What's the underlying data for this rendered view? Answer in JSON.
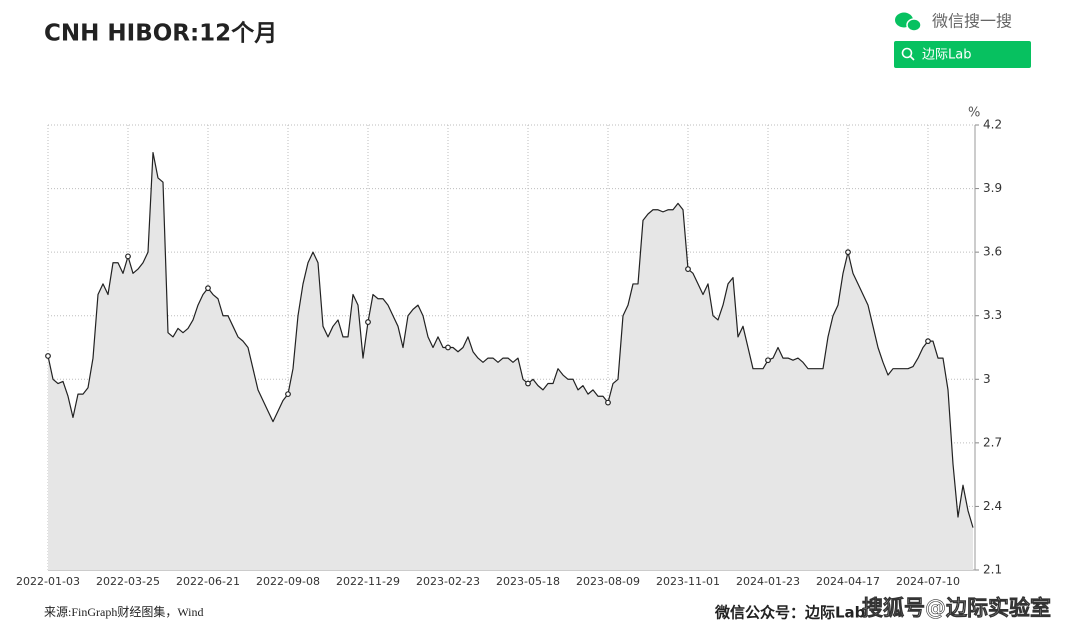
{
  "chart_data": {
    "type": "area",
    "title": "CNH HIBOR:12个月",
    "unit_label": "%",
    "source": "来源:FinGraph财经图集，Wind",
    "footer_account": "微信公众号：边际Lab",
    "watermark": "搜狐号@边际实验室",
    "search_widget": {
      "label": "微信搜一搜",
      "query": "边际Lab"
    },
    "line_color": "#222222",
    "fill_color": "#e6e6e6",
    "grid": true,
    "ylim": [
      2.1,
      4.2
    ],
    "yticks": [
      2.1,
      2.4,
      2.7,
      3,
      3.3,
      3.6,
      3.9,
      4.2
    ],
    "categories": [
      "2022-01-03",
      null,
      null,
      null,
      null,
      null,
      null,
      null,
      null,
      null,
      null,
      null,
      null,
      null,
      null,
      null,
      "2022-03-25",
      null,
      null,
      null,
      null,
      null,
      null,
      null,
      null,
      null,
      null,
      null,
      null,
      null,
      null,
      null,
      "2022-06-21",
      null,
      null,
      null,
      null,
      null,
      null,
      null,
      null,
      null,
      null,
      null,
      null,
      null,
      null,
      null,
      "2022-09-08",
      null,
      null,
      null,
      null,
      null,
      null,
      null,
      null,
      null,
      null,
      null,
      null,
      null,
      null,
      null,
      "2022-11-29",
      null,
      null,
      null,
      null,
      null,
      null,
      null,
      null,
      null,
      null,
      null,
      null,
      null,
      null,
      null,
      "2023-02-23",
      null,
      null,
      null,
      null,
      null,
      null,
      null,
      null,
      null,
      null,
      null,
      null,
      null,
      null,
      null,
      "2023-05-18",
      null,
      null,
      null,
      null,
      null,
      null,
      null,
      null,
      null,
      null,
      null,
      null,
      null,
      null,
      null,
      "2023-08-09",
      null,
      null,
      null,
      null,
      null,
      null,
      null,
      null,
      null,
      null,
      null,
      null,
      null,
      null,
      null,
      "2023-11-01",
      null,
      null,
      null,
      null,
      null,
      null,
      null,
      null,
      null,
      null,
      null,
      null,
      null,
      null,
      null,
      "2024-01-23",
      null,
      null,
      null,
      null,
      null,
      null,
      null,
      null,
      null,
      null,
      null,
      null,
      null,
      null,
      null,
      "2024-04-17",
      null,
      null,
      null,
      null,
      null,
      null,
      null,
      null,
      null,
      null,
      null,
      null,
      null,
      null,
      null,
      "2024-07-10",
      null,
      null,
      null,
      null,
      null,
      null,
      null,
      null,
      null
    ],
    "values": [
      3.11,
      3.0,
      2.98,
      2.99,
      2.92,
      2.82,
      2.93,
      2.93,
      2.96,
      3.1,
      3.4,
      3.45,
      3.4,
      3.55,
      3.55,
      3.5,
      3.58,
      3.5,
      3.52,
      3.55,
      3.6,
      4.07,
      3.95,
      3.93,
      3.22,
      3.2,
      3.24,
      3.22,
      3.24,
      3.28,
      3.35,
      3.4,
      3.43,
      3.4,
      3.38,
      3.3,
      3.3,
      3.25,
      3.2,
      3.18,
      3.15,
      3.05,
      2.95,
      2.9,
      2.85,
      2.8,
      2.85,
      2.9,
      2.93,
      3.05,
      3.3,
      3.45,
      3.55,
      3.6,
      3.55,
      3.25,
      3.2,
      3.25,
      3.28,
      3.2,
      3.2,
      3.4,
      3.35,
      3.1,
      3.27,
      3.4,
      3.38,
      3.38,
      3.35,
      3.3,
      3.25,
      3.15,
      3.3,
      3.33,
      3.35,
      3.3,
      3.2,
      3.15,
      3.2,
      3.15,
      3.15,
      3.15,
      3.13,
      3.15,
      3.2,
      3.13,
      3.1,
      3.08,
      3.1,
      3.1,
      3.08,
      3.1,
      3.1,
      3.08,
      3.1,
      3.0,
      2.98,
      3.0,
      2.97,
      2.95,
      2.98,
      2.98,
      3.05,
      3.02,
      3.0,
      3.0,
      2.95,
      2.97,
      2.93,
      2.95,
      2.92,
      2.92,
      2.89,
      2.98,
      3.0,
      3.3,
      3.35,
      3.45,
      3.45,
      3.75,
      3.78,
      3.8,
      3.8,
      3.79,
      3.8,
      3.8,
      3.83,
      3.8,
      3.52,
      3.5,
      3.45,
      3.4,
      3.45,
      3.3,
      3.28,
      3.35,
      3.45,
      3.48,
      3.2,
      3.25,
      3.15,
      3.05,
      3.05,
      3.05,
      3.09,
      3.1,
      3.15,
      3.1,
      3.1,
      3.09,
      3.1,
      3.08,
      3.05,
      3.05,
      3.05,
      3.05,
      3.2,
      3.3,
      3.35,
      3.5,
      3.6,
      3.5,
      3.45,
      3.4,
      3.35,
      3.25,
      3.15,
      3.08,
      3.02,
      3.05,
      3.05,
      3.05,
      3.05,
      3.06,
      3.1,
      3.15,
      3.18,
      3.18,
      3.1,
      3.1,
      2.95,
      2.6,
      2.35,
      2.5,
      2.38,
      2.3
    ]
  }
}
